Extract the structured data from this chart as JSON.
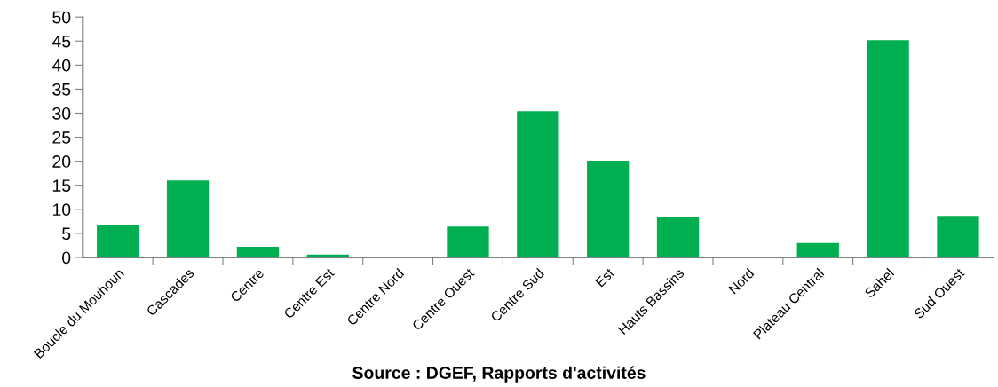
{
  "chart_data": {
    "type": "bar",
    "categories": [
      "Boucle du Mouhoun",
      "Cascades",
      "Centre",
      "Centre Est",
      "Centre Nord",
      "Centre Ouest",
      "Centre Sud",
      "Est",
      "Hauts Bassins",
      "Nord",
      "Plateau Central",
      "Sahel",
      "Sud Ouest"
    ],
    "values": [
      6.8,
      16.0,
      2.2,
      0.6,
      0,
      6.4,
      30.4,
      20.1,
      8.3,
      0,
      3.0,
      45.2,
      8.6
    ],
    "color": "#00b050",
    "ylim": [
      0,
      50
    ],
    "yticks": [
      0,
      5,
      10,
      15,
      20,
      25,
      30,
      35,
      40,
      45,
      50
    ],
    "grid": false,
    "annotations": [
      "Source : DGEF, Rapports d'activités"
    ]
  }
}
